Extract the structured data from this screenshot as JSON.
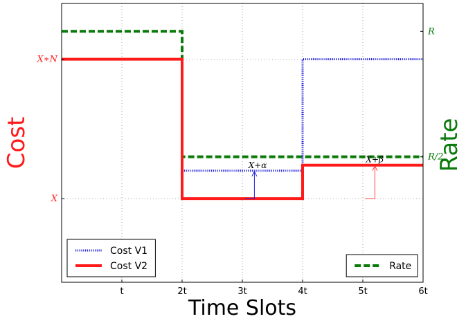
{
  "chart_data": {
    "type": "line",
    "xlabel": "Time Slots",
    "ylabel_left": "Cost",
    "ylabel_right": "Rate",
    "x_ticks": [
      {
        "value": 1,
        "label": "t"
      },
      {
        "value": 2,
        "label": "2t"
      },
      {
        "value": 3,
        "label": "3t"
      },
      {
        "value": 4,
        "label": "4t"
      },
      {
        "value": 5,
        "label": "5t"
      },
      {
        "value": 6,
        "label": "6t"
      }
    ],
    "xlim": [
      0,
      6
    ],
    "ylim": [
      0,
      10
    ],
    "left_ticks": [
      {
        "value": 3,
        "label": "X"
      },
      {
        "value": 8,
        "label": "X∗N"
      }
    ],
    "right_ticks": [
      {
        "value": 4.5,
        "label": "R/2"
      },
      {
        "value": 9,
        "label": "R"
      }
    ],
    "grid": true,
    "series": [
      {
        "name": "Cost V1",
        "axis": "left",
        "style": "dotted",
        "color": "#1f1fdc",
        "points": [
          [
            2,
            4
          ],
          [
            4,
            4
          ],
          [
            4,
            8
          ],
          [
            6,
            8
          ]
        ]
      },
      {
        "name": "Cost V2",
        "axis": "left",
        "style": "solid",
        "color": "#ff1a1a",
        "points": [
          [
            0,
            8
          ],
          [
            2,
            8
          ],
          [
            2,
            3
          ],
          [
            4,
            3
          ],
          [
            4,
            4.2
          ],
          [
            6,
            4.2
          ]
        ]
      },
      {
        "name": "Rate",
        "axis": "right",
        "style": "dashed",
        "color": "#0a7a0a",
        "points": [
          [
            0,
            9
          ],
          [
            2,
            9
          ],
          [
            2,
            4.5
          ],
          [
            6,
            4.5
          ]
        ]
      }
    ],
    "annotations": [
      {
        "text": "X+α",
        "x": 3.1,
        "y": 4.1,
        "arrow_from": [
          3.2,
          3
        ],
        "arrow_to": [
          3.2,
          4
        ],
        "color": "#1f1fdc"
      },
      {
        "text": "X+β",
        "x": 5.05,
        "y": 4.3,
        "arrow_from": [
          5.2,
          3
        ],
        "arrow_to": [
          5.2,
          4.2
        ],
        "color": "#ff4040"
      }
    ],
    "legends": [
      {
        "placement": "lower-left",
        "entries": [
          "Cost V1",
          "Cost V2"
        ]
      },
      {
        "placement": "lower-right",
        "entries": [
          "Rate"
        ]
      }
    ]
  }
}
